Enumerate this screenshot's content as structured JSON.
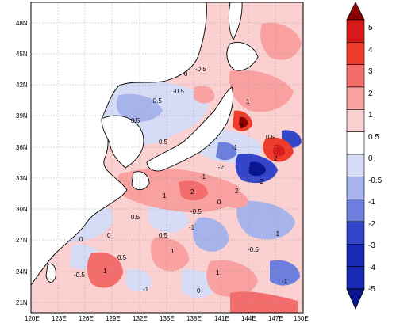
{
  "map": {
    "lon_labels": [
      "120E",
      "123E",
      "126E",
      "129E",
      "132E",
      "135E",
      "138E",
      "141E",
      "144E",
      "147E",
      "150E"
    ],
    "lat_labels": [
      "48N",
      "45N",
      "42N",
      "39N",
      "36N",
      "33N",
      "30N",
      "27N",
      "24N",
      "21N"
    ],
    "contour_labels": [
      "-0.5",
      "-0.5",
      "0.5",
      "0.5",
      "0",
      "-0.5",
      "1",
      "3",
      "-1",
      "2",
      "-2",
      "0.5",
      "-1",
      "-2",
      "2",
      "2",
      "-0.5",
      "0",
      "0.5",
      "1",
      "-1",
      "0",
      "0.5",
      "-1",
      "1",
      "0",
      "0.5",
      "-0.5",
      "1",
      "-1",
      "1",
      "0",
      "-1",
      "-0.5"
    ]
  },
  "colorbar": {
    "labels": [
      "5",
      "4",
      "3",
      "2",
      "1",
      "0.5",
      "0",
      "-0.5",
      "-1",
      "-2",
      "-3",
      "-4",
      "-5"
    ],
    "colors": [
      "#8b0000",
      "#d7191c",
      "#ef3b2c",
      "#f46d6d",
      "#f9a0a0",
      "#fbd0d0",
      "#ffffff",
      "#d6dcf5",
      "#a7b4ec",
      "#6d7fdc",
      "#3346c9",
      "#1a2bb5",
      "#0a1590"
    ]
  },
  "colors": {
    "land": "#ffffff",
    "coast": "#000000",
    "grid": "#9a9a9a"
  }
}
